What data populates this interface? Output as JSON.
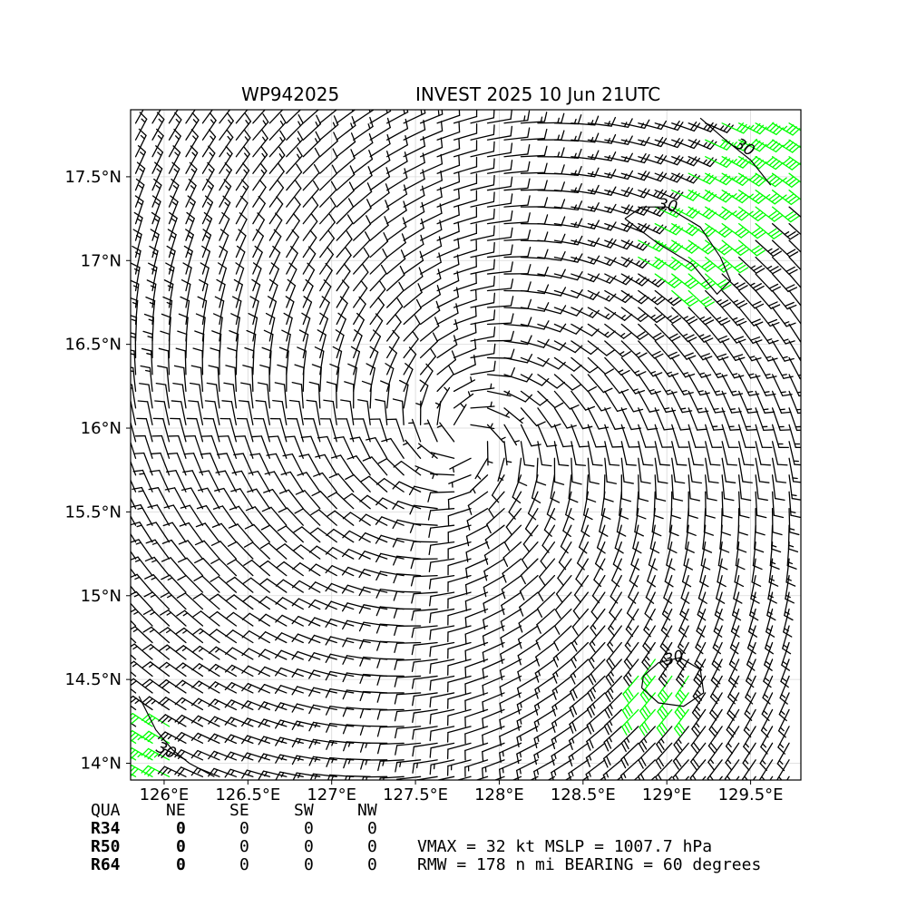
{
  "header": {
    "storm_id": "WP942025",
    "title": "INVEST 2025 10 Jun 21UTC"
  },
  "chart_data": {
    "type": "wind-barb-map",
    "xlabel": "",
    "ylabel": "",
    "xlim": [
      125.8,
      129.8
    ],
    "ylim": [
      13.9,
      17.9
    ],
    "x_ticks": [
      126.0,
      126.5,
      127.0,
      127.5,
      128.0,
      128.5,
      129.0,
      129.5
    ],
    "x_tick_labels": [
      "126°E",
      "126.5°E",
      "127°E",
      "127.5°E",
      "128°E",
      "128.5°E",
      "129°E",
      "129.5°E"
    ],
    "y_ticks": [
      14.0,
      14.5,
      15.0,
      15.5,
      16.0,
      16.5,
      17.0,
      17.5
    ],
    "y_tick_labels": [
      "14°N",
      "14.5°N",
      "15°N",
      "15.5°N",
      "16°N",
      "16.5°N",
      "17°N",
      "17.5°N"
    ],
    "grid": true,
    "circulation_center": [
      127.8,
      15.95
    ],
    "barb_grid": {
      "lon_start": 125.83,
      "lat_start": 13.92,
      "step": 0.1
    },
    "highlight_color": "#00ff00",
    "barb_color": "#000000",
    "highlight_threshold_kt": 30,
    "contour_labels": [
      {
        "text": "30",
        "lon": 129.0,
        "lat": 17.3,
        "angle": 10
      },
      {
        "text": "30",
        "lon": 129.45,
        "lat": 17.65,
        "angle": 30
      },
      {
        "text": "30",
        "lon": 129.05,
        "lat": 14.6,
        "angle": -15
      },
      {
        "text": "30",
        "lon": 126.0,
        "lat": 14.05,
        "angle": 25
      }
    ],
    "contours": [
      {
        "level": 30,
        "points": [
          [
            128.75,
            17.25
          ],
          [
            128.95,
            17.1
          ],
          [
            129.15,
            16.98
          ],
          [
            129.3,
            16.8
          ],
          [
            129.38,
            16.88
          ],
          [
            129.32,
            17.02
          ],
          [
            129.2,
            17.2
          ],
          [
            129.0,
            17.32
          ],
          [
            128.85,
            17.32
          ],
          [
            128.75,
            17.25
          ]
        ]
      },
      {
        "level": 30,
        "points": [
          [
            128.85,
            14.45
          ],
          [
            128.95,
            14.36
          ],
          [
            129.1,
            14.34
          ],
          [
            129.22,
            14.42
          ],
          [
            129.2,
            14.56
          ],
          [
            129.08,
            14.63
          ],
          [
            128.95,
            14.6
          ],
          [
            128.86,
            14.52
          ],
          [
            128.85,
            14.45
          ]
        ]
      },
      {
        "level": 30,
        "points": [
          [
            125.85,
            14.4
          ],
          [
            125.95,
            14.2
          ],
          [
            126.05,
            14.08
          ],
          [
            126.15,
            14.0
          ],
          [
            126.3,
            13.92
          ]
        ]
      },
      {
        "level": 30,
        "points": [
          [
            129.2,
            17.85
          ],
          [
            129.35,
            17.72
          ],
          [
            129.5,
            17.6
          ],
          [
            129.62,
            17.45
          ]
        ]
      }
    ]
  },
  "footer": {
    "headers": [
      "QUA",
      "NE",
      "SE",
      "SW",
      "NW"
    ],
    "rows": [
      {
        "label": "R34",
        "values": [
          "0",
          "0",
          "0",
          "0"
        ]
      },
      {
        "label": "R50",
        "values": [
          "0",
          "0",
          "0",
          "0"
        ]
      },
      {
        "label": "R64",
        "values": [
          "0",
          "0",
          "0",
          "0"
        ]
      }
    ],
    "vmax_line": "VMAX =  32 kt MSLP = 1007.7 hPa",
    "rmw_line": "RMW = 178 n mi BEARING =  60 degrees"
  }
}
